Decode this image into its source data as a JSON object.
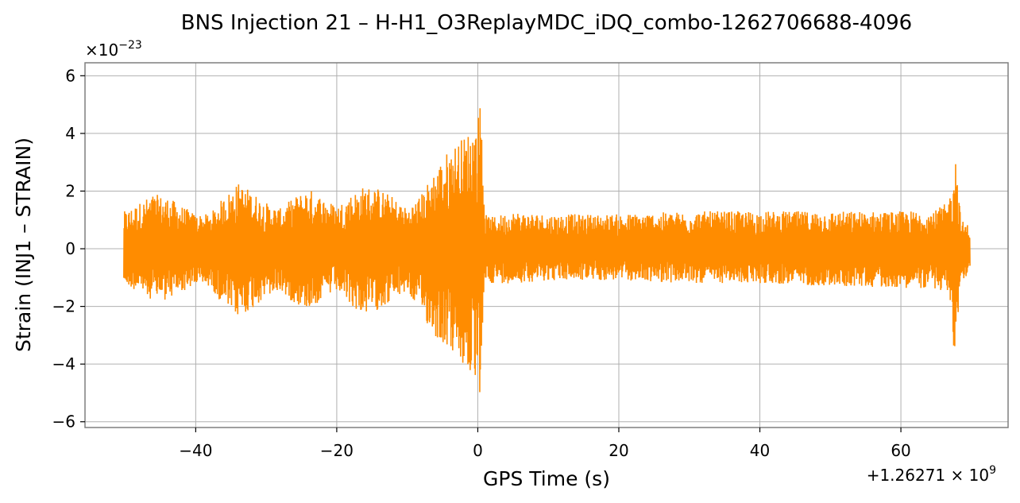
{
  "chart_data": {
    "type": "line",
    "title": "BNS Injection 21 – H-H1_O3ReplayMDC_iDQ_combo-1262706688-4096",
    "xlabel": "GPS Time (s)",
    "ylabel": "Strain (INJ1 – STRAIN)",
    "x_offset_label": "+1.26271 × 10",
    "x_offset_exponent": "9",
    "y_scale_label": "×10",
    "y_scale_exponent": "−23",
    "xlim": [
      -55.7,
      75.2
    ],
    "ylim": [
      -6.2,
      6.45
    ],
    "x_ticks": [
      -40,
      -20,
      0,
      20,
      40,
      60
    ],
    "x_tick_labels": [
      "−40",
      "−20",
      "0",
      "20",
      "40",
      "60"
    ],
    "y_ticks": [
      -6,
      -4,
      -2,
      0,
      2,
      4,
      6
    ],
    "y_tick_labels": [
      "−6",
      "−4",
      "−2",
      "0",
      "2",
      "4",
      "6"
    ],
    "grid": true,
    "series": [
      {
        "color": "#ff8c00",
        "x_range": [
          -50.2,
          69.8
        ],
        "envelope": {
          "x": [
            -50,
            -48,
            -46,
            -44,
            -42,
            -40,
            -38,
            -36,
            -34,
            -32,
            -30,
            -28,
            -26,
            -24,
            -22,
            -20,
            -18,
            -16,
            -14,
            -12,
            -10,
            -8,
            -6,
            -4,
            -2,
            0,
            0.5,
            1,
            2,
            5,
            10,
            20,
            30,
            40,
            50,
            60,
            65,
            66.5,
            67.3,
            67.6,
            68.5,
            69.8
          ],
          "upper": [
            1.3,
            1.6,
            1.9,
            1.8,
            1.5,
            1.2,
            1.2,
            1.8,
            2.3,
            2.0,
            1.6,
            1.4,
            1.8,
            2.1,
            1.8,
            1.5,
            1.9,
            2.2,
            2.1,
            1.8,
            1.4,
            1.9,
            2.8,
            3.5,
            3.9,
            4.5,
            5.8,
            1.2,
            1.1,
            1.3,
            1.2,
            1.2,
            1.3,
            1.3,
            1.3,
            1.3,
            1.35,
            1.6,
            2.1,
            3.9,
            1.0,
            0.8
          ],
          "lower": [
            -1.3,
            -1.5,
            -1.8,
            -1.8,
            -1.5,
            -1.3,
            -1.3,
            -2.0,
            -2.4,
            -2.1,
            -1.7,
            -1.5,
            -1.9,
            -2.1,
            -1.8,
            -1.5,
            -2.0,
            -2.3,
            -2.1,
            -1.8,
            -1.5,
            -2.3,
            -3.1,
            -3.5,
            -4.2,
            -4.8,
            -5.5,
            -1.1,
            -1.2,
            -1.2,
            -1.1,
            -1.1,
            -1.2,
            -1.2,
            -1.3,
            -1.35,
            -1.4,
            -1.6,
            -2.2,
            -4.4,
            -1.1,
            -0.9
          ]
        }
      }
    ]
  }
}
